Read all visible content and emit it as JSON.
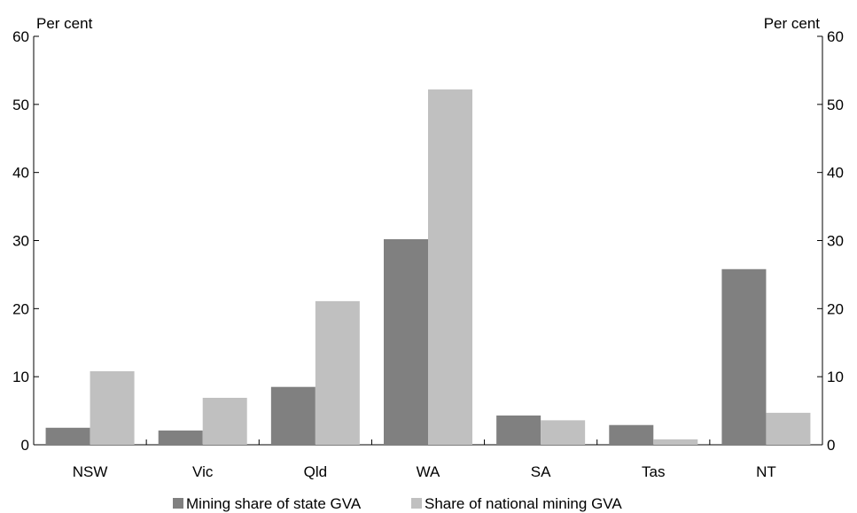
{
  "chart_data": {
    "type": "bar",
    "title": "",
    "xlabel": "",
    "ylabel": "Per cent",
    "ylabel_right": "Per cent",
    "ylim": [
      0,
      60
    ],
    "yticks": [
      "0",
      "10",
      "20",
      "30",
      "40",
      "50",
      "60"
    ],
    "grid": false,
    "legend_position": "bottom",
    "categories": [
      "NSW",
      "Vic",
      "Qld",
      "WA",
      "SA",
      "Tas",
      "NT"
    ],
    "series": [
      {
        "name": "Mining share of state GVA",
        "color": "#808080",
        "values": [
          2.5,
          2.1,
          8.5,
          30.2,
          4.3,
          2.9,
          25.8
        ]
      },
      {
        "name": "Share of national mining GVA",
        "color": "#c0c0c0",
        "values": [
          10.8,
          6.9,
          21.1,
          52.2,
          3.6,
          0.8,
          4.7
        ]
      }
    ]
  }
}
